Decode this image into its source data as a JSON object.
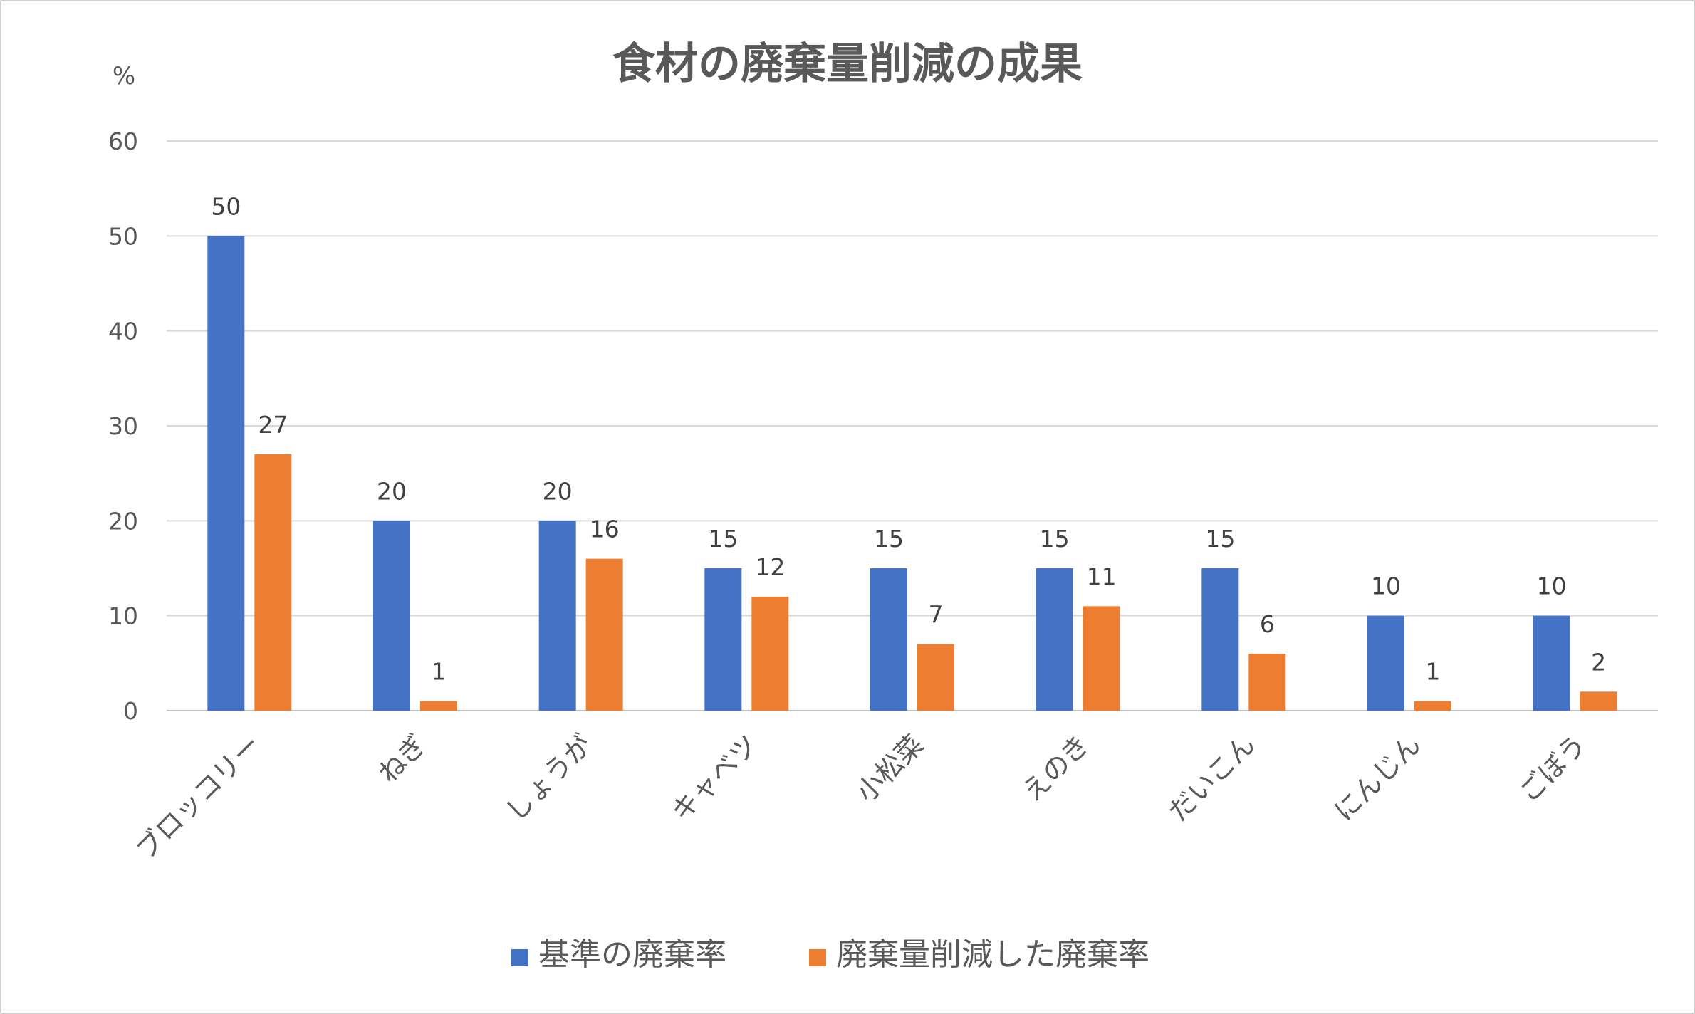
{
  "chart_data": {
    "type": "bar",
    "title": "食材の廃棄量削減の成果",
    "ylabel": "%",
    "xlabel": "",
    "ylim": [
      0,
      60
    ],
    "yticks": [
      0,
      10,
      20,
      30,
      40,
      50,
      60
    ],
    "grid": true,
    "legend_position": "bottom",
    "categories": [
      "ブロッコリー",
      "ねぎ",
      "しょうが",
      "キャベツ",
      "小松菜",
      "えのき",
      "だいこん",
      "にんじん",
      "ごぼう"
    ],
    "series": [
      {
        "name": "基準の廃棄率",
        "color": "#4472C4",
        "values": [
          50,
          20,
          20,
          15,
          15,
          15,
          15,
          10,
          10
        ]
      },
      {
        "name": "廃棄量削減した廃棄率",
        "color": "#ED7D31",
        "values": [
          27,
          1,
          16,
          12,
          7,
          11,
          6,
          1,
          2
        ]
      }
    ]
  }
}
